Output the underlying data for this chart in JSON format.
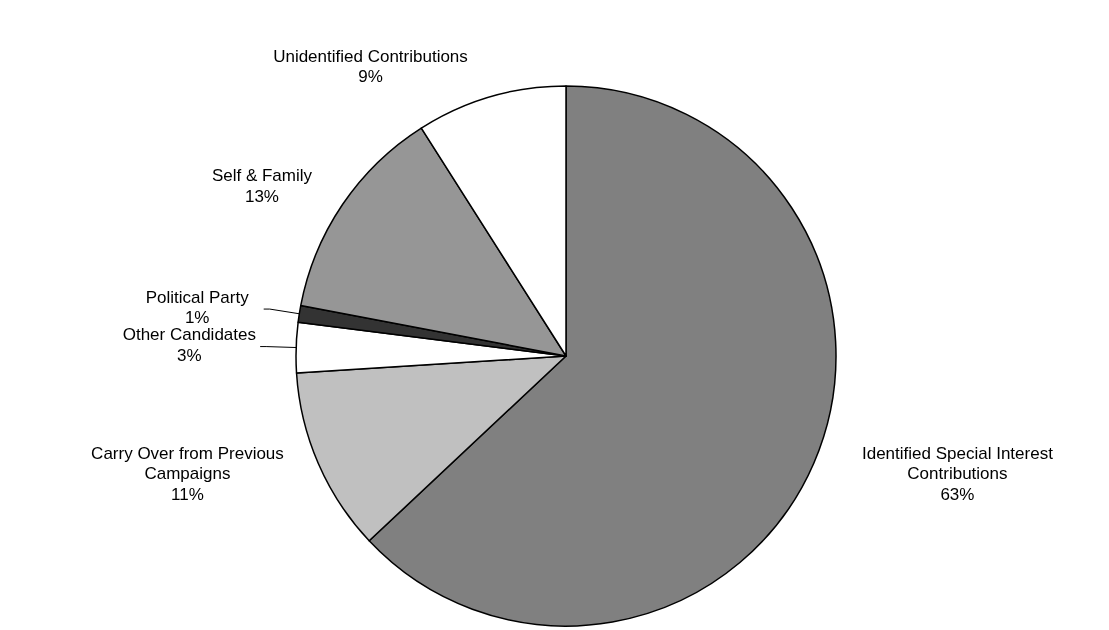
{
  "chart_data": {
    "type": "pie",
    "categories": [
      "Identified Special Interest Contributions",
      "Carry Over from Previous Campaigns",
      "Other Candidates",
      "Political Party",
      "Self & Family",
      "Unidentified Contributions"
    ],
    "values": [
      63,
      11,
      3,
      1,
      13,
      9
    ],
    "colors": [
      "#808080",
      "#c0c0c0",
      "#ffffff",
      "#333333",
      "#969696",
      "#ffffff"
    ],
    "value_labels": [
      "63%",
      "11%",
      "3%",
      "1%",
      "13%",
      "9%"
    ]
  }
}
